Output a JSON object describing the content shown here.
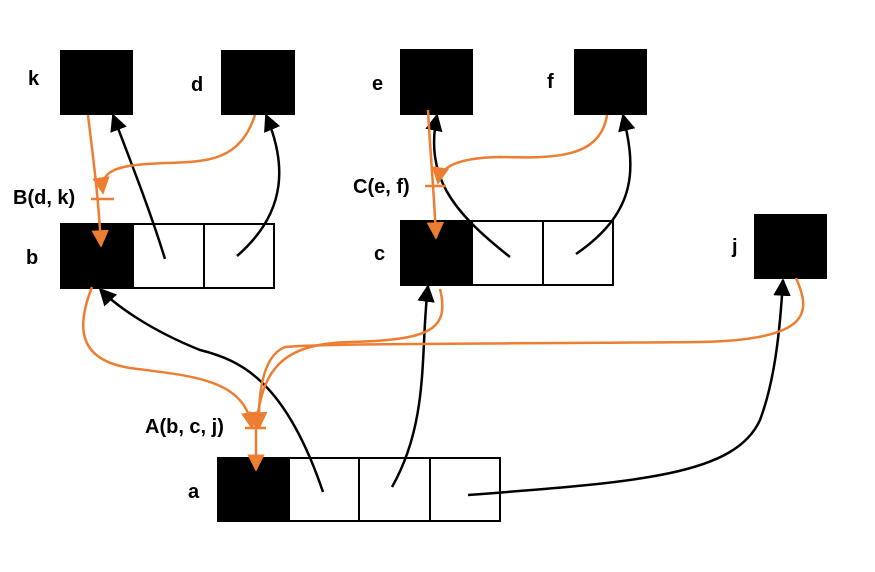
{
  "nodes": {
    "k": "k",
    "d": "d",
    "e": "e",
    "f": "f",
    "b": "b",
    "c": "c",
    "j": "j",
    "a": "a"
  },
  "constructors": {
    "B": "B(d, k)",
    "C": "C(e, f)",
    "A": "A(b, c, j)"
  },
  "colors": {
    "object": "#000000",
    "cell": "#ffffff",
    "pointer": "#000000",
    "construction": "#ED7D31"
  }
}
